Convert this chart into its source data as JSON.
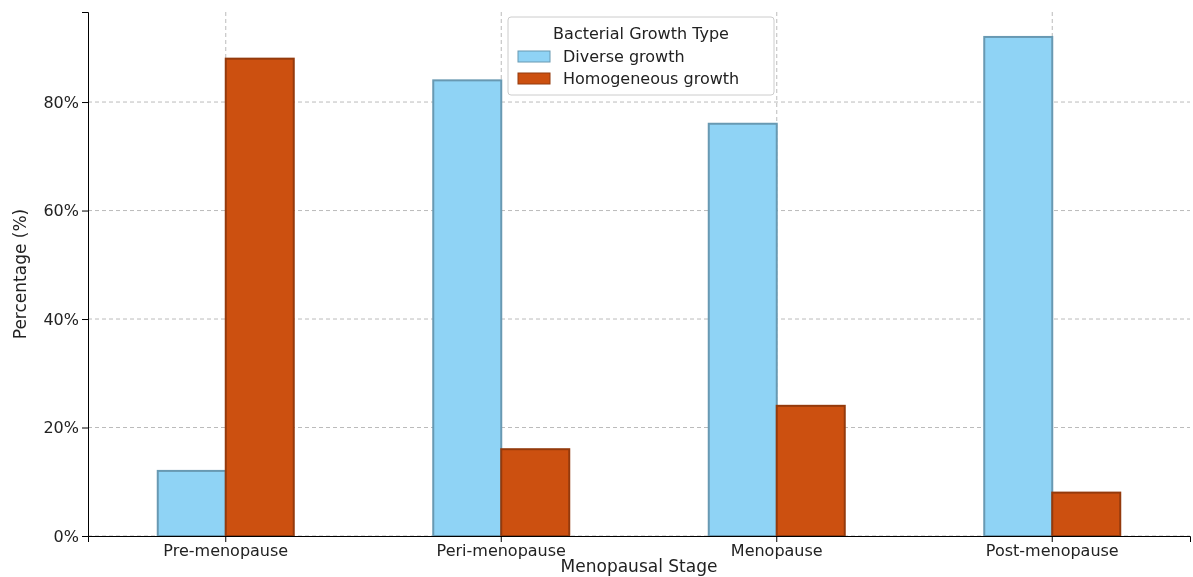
{
  "chart_data": {
    "type": "bar",
    "xlabel": "Menopausal Stage",
    "ylabel": "Percentage (%)",
    "legend_title": "Bacterial Growth Type",
    "categories": [
      "Pre-menopause",
      "Peri-menopause",
      "Menopause",
      "Post-menopause"
    ],
    "series": [
      {
        "name": "Diverse growth",
        "color": "#8fd3f5",
        "values": [
          12,
          84,
          76,
          92
        ]
      },
      {
        "name": "Homogeneous growth",
        "color": "#cc5010",
        "values": [
          88,
          16,
          24,
          8
        ]
      }
    ],
    "ylim": [
      0,
      96.6
    ],
    "yticks": [
      {
        "value": 0,
        "label": "0%"
      },
      {
        "value": 20,
        "label": "20%"
      },
      {
        "value": 40,
        "label": "40%"
      },
      {
        "value": 60,
        "label": "60%"
      },
      {
        "value": 80,
        "label": "80%"
      }
    ],
    "grid": true,
    "legend": "top"
  }
}
